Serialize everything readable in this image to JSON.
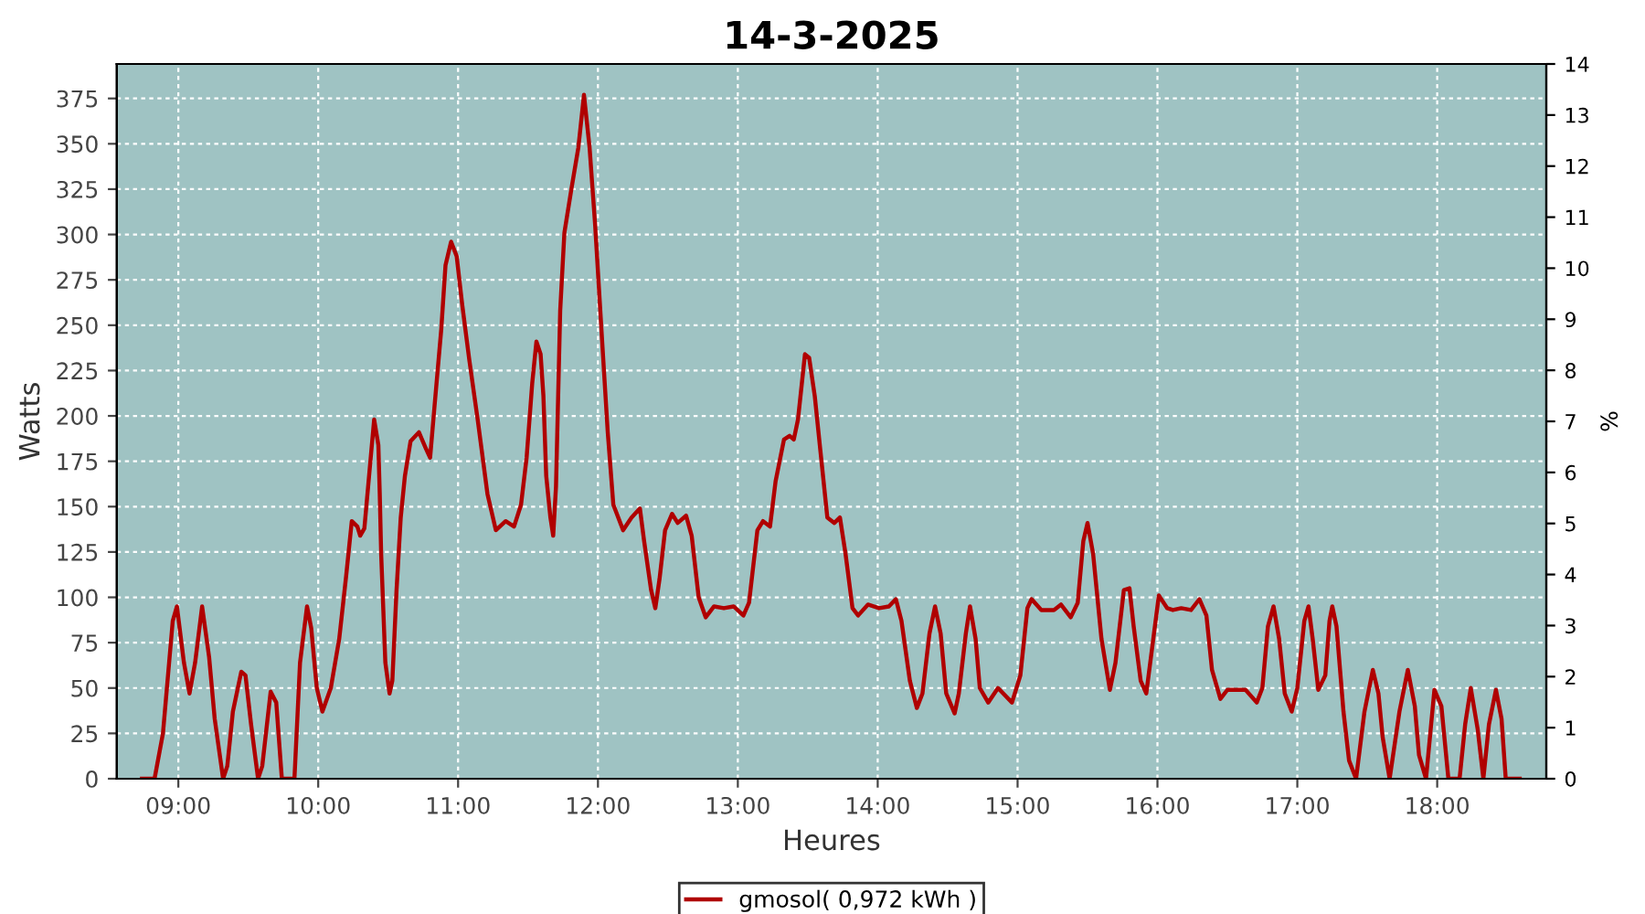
{
  "chart_data": {
    "type": "line",
    "title": "14-3-2025",
    "xlabel": "Heures",
    "ylabel": "Watts",
    "y2label": "%",
    "xlim": [
      8.56,
      18.78
    ],
    "xticks": [
      {
        "value": 9,
        "label": "09:00"
      },
      {
        "value": 10,
        "label": "10:00"
      },
      {
        "value": 11,
        "label": "11:00"
      },
      {
        "value": 12,
        "label": "12:00"
      },
      {
        "value": 13,
        "label": "13:00"
      },
      {
        "value": 14,
        "label": "14:00"
      },
      {
        "value": 15,
        "label": "15:00"
      },
      {
        "value": 16,
        "label": "16:00"
      },
      {
        "value": 17,
        "label": "17:00"
      },
      {
        "value": 18,
        "label": "18:00"
      }
    ],
    "ylim": [
      0,
      394
    ],
    "yticks": [
      0,
      25,
      50,
      75,
      100,
      125,
      150,
      175,
      200,
      225,
      250,
      275,
      300,
      325,
      350,
      375
    ],
    "y2lim": [
      0,
      14
    ],
    "y2ticks": [
      0,
      1,
      2,
      3,
      4,
      5,
      6,
      7,
      8,
      9,
      10,
      11,
      12,
      13,
      14
    ],
    "grid": true,
    "legend": "bottom",
    "line_style": "solid",
    "marker": "none",
    "series": [
      {
        "name": "gmosol( 0,972 kWh )",
        "color": "#b00000",
        "x": [
          8.74,
          8.83,
          8.89,
          8.96,
          8.99,
          9.04,
          9.08,
          9.12,
          9.17,
          9.22,
          9.26,
          9.32,
          9.35,
          9.39,
          9.45,
          9.48,
          9.52,
          9.57,
          9.6,
          9.66,
          9.7,
          9.74,
          9.83,
          9.87,
          9.92,
          9.95,
          9.99,
          10.03,
          10.09,
          10.15,
          10.2,
          10.24,
          10.28,
          10.3,
          10.33,
          10.38,
          10.4,
          10.43,
          10.44,
          10.45,
          10.48,
          10.51,
          10.53,
          10.56,
          10.59,
          10.62,
          10.66,
          10.72,
          10.77,
          10.8,
          10.83,
          10.88,
          10.91,
          10.95,
          10.99,
          11.03,
          11.08,
          11.14,
          11.21,
          11.27,
          11.34,
          11.4,
          11.45,
          11.49,
          11.53,
          11.56,
          11.59,
          11.61,
          11.63,
          11.66,
          11.68,
          11.7,
          11.73,
          11.76,
          11.81,
          11.86,
          11.9,
          11.94,
          11.98,
          12.03,
          12.07,
          12.11,
          12.18,
          12.24,
          12.3,
          12.33,
          12.38,
          12.41,
          12.44,
          12.48,
          12.53,
          12.57,
          12.63,
          12.67,
          12.72,
          12.77,
          12.83,
          12.9,
          12.97,
          13.04,
          13.08,
          13.14,
          13.18,
          13.23,
          13.27,
          13.33,
          13.37,
          13.4,
          13.43,
          13.48,
          13.51,
          13.55,
          13.59,
          13.64,
          13.69,
          13.73,
          13.77,
          13.82,
          13.86,
          13.93,
          14.01,
          14.08,
          14.13,
          14.17,
          14.23,
          14.28,
          14.32,
          14.37,
          14.41,
          14.45,
          14.49,
          14.55,
          14.58,
          14.63,
          14.66,
          14.7,
          14.73,
          14.79,
          14.86,
          14.96,
          15.02,
          15.07,
          15.1,
          15.17,
          15.26,
          15.31,
          15.38,
          15.43,
          15.47,
          15.5,
          15.54,
          15.6,
          15.66,
          15.7,
          15.76,
          15.8,
          15.83,
          15.88,
          15.92,
          15.97,
          16.01,
          16.07,
          16.11,
          16.17,
          16.24,
          16.3,
          16.35,
          16.39,
          16.45,
          16.5,
          16.57,
          16.63,
          16.71,
          16.75,
          16.79,
          16.83,
          16.87,
          16.91,
          16.96,
          17.0,
          17.05,
          17.08,
          17.11,
          17.15,
          17.2,
          17.23,
          17.25,
          17.28,
          17.33,
          17.37,
          17.42,
          17.48,
          17.54,
          17.58,
          17.61,
          17.66,
          17.73,
          17.79,
          17.84,
          17.87,
          17.92,
          17.98,
          18.03,
          18.08,
          18.16,
          18.2,
          18.24,
          18.29,
          18.33,
          18.37,
          18.42,
          18.46,
          18.49,
          18.59
        ],
        "values": [
          0,
          0,
          25,
          87,
          95,
          64,
          47,
          64,
          95,
          67,
          33,
          0,
          7,
          37,
          59,
          57,
          30,
          0,
          7,
          48,
          42,
          0,
          0,
          64,
          95,
          83,
          50,
          37,
          50,
          77,
          112,
          142,
          139,
          134,
          138,
          181,
          198,
          184,
          157,
          124,
          64,
          47,
          54,
          104,
          144,
          167,
          186,
          191,
          182,
          177,
          204,
          248,
          283,
          296,
          288,
          261,
          231,
          198,
          157,
          137,
          142,
          139,
          151,
          177,
          218,
          241,
          234,
          211,
          167,
          144,
          134,
          161,
          258,
          301,
          325,
          348,
          377,
          348,
          305,
          241,
          191,
          151,
          137,
          144,
          149,
          131,
          104,
          94,
          110,
          137,
          146,
          141,
          145,
          134,
          100,
          89,
          95,
          94,
          95,
          90,
          97,
          137,
          142,
          139,
          164,
          187,
          189,
          187,
          198,
          234,
          232,
          211,
          181,
          144,
          141,
          144,
          124,
          94,
          90,
          96,
          94,
          95,
          99,
          87,
          54,
          39,
          47,
          80,
          95,
          80,
          47,
          36,
          47,
          80,
          95,
          77,
          50,
          42,
          50,
          42,
          57,
          94,
          99,
          93,
          93,
          96,
          89,
          97,
          131,
          141,
          124,
          77,
          49,
          64,
          104,
          105,
          84,
          54,
          47,
          77,
          101,
          94,
          93,
          94,
          93,
          99,
          90,
          60,
          44,
          49,
          49,
          49,
          42,
          50,
          84,
          95,
          77,
          47,
          37,
          50,
          87,
          95,
          77,
          49,
          57,
          87,
          95,
          84,
          37,
          10,
          0,
          37,
          60,
          47,
          23,
          0,
          37,
          60,
          40,
          13,
          0,
          49,
          40,
          0,
          0,
          30,
          50,
          27,
          0,
          30,
          49,
          33,
          0,
          0
        ]
      }
    ]
  }
}
